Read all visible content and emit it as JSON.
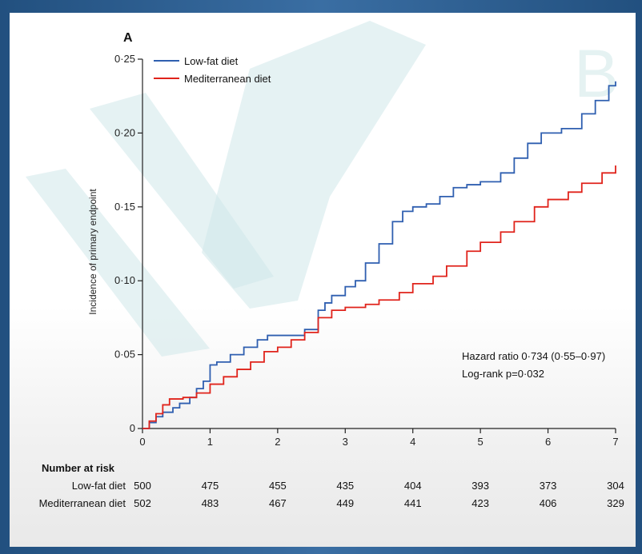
{
  "panel_letter": "A",
  "annotations": {
    "hazard_ratio": "Hazard ratio 0·734 (0·55–0·97)",
    "log_rank": "Log-rank p=0·032"
  },
  "colors": {
    "low_fat": "#2f5fb0",
    "mediterranean": "#e0231b"
  },
  "risk_table": {
    "title": "Number at risk",
    "rows": [
      {
        "label": "Low-fat diet",
        "values": [
          "500",
          "475",
          "455",
          "435",
          "404",
          "393",
          "373",
          "304"
        ]
      },
      {
        "label": "Mediterranean diet",
        "values": [
          "502",
          "483",
          "467",
          "449",
          "441",
          "423",
          "406",
          "329"
        ]
      }
    ]
  },
  "watermark_text": "B",
  "chart_data": {
    "type": "line",
    "title": "",
    "xlabel": "",
    "ylabel": "Incidence of primary endpoint",
    "xlim": [
      0,
      7
    ],
    "ylim": [
      0,
      0.25
    ],
    "x_ticks": [
      0,
      1,
      2,
      3,
      4,
      5,
      6,
      7
    ],
    "x_tick_labels": [
      "0",
      "1",
      "2",
      "3",
      "4",
      "5",
      "6",
      "7"
    ],
    "y_ticks": [
      0,
      0.05,
      0.1,
      0.15,
      0.2,
      0.25
    ],
    "y_tick_labels": [
      "0",
      "0·05",
      "0·10",
      "0·15",
      "0·20",
      "0·25"
    ],
    "legend_position": "top-left",
    "step": true,
    "series": [
      {
        "name": "Low-fat diet",
        "color": "#2f5fb0",
        "points": [
          [
            0,
            0
          ],
          [
            0.1,
            0.004
          ],
          [
            0.2,
            0.008
          ],
          [
            0.3,
            0.011
          ],
          [
            0.45,
            0.014
          ],
          [
            0.55,
            0.017
          ],
          [
            0.7,
            0.021
          ],
          [
            0.8,
            0.027
          ],
          [
            0.9,
            0.032
          ],
          [
            1.0,
            0.043
          ],
          [
            1.1,
            0.045
          ],
          [
            1.3,
            0.05
          ],
          [
            1.5,
            0.055
          ],
          [
            1.7,
            0.06
          ],
          [
            1.85,
            0.063
          ],
          [
            2.0,
            0.063
          ],
          [
            2.2,
            0.063
          ],
          [
            2.4,
            0.067
          ],
          [
            2.6,
            0.08
          ],
          [
            2.7,
            0.085
          ],
          [
            2.8,
            0.09
          ],
          [
            3.0,
            0.096
          ],
          [
            3.15,
            0.1
          ],
          [
            3.3,
            0.112
          ],
          [
            3.5,
            0.125
          ],
          [
            3.7,
            0.14
          ],
          [
            3.85,
            0.147
          ],
          [
            4.0,
            0.15
          ],
          [
            4.2,
            0.152
          ],
          [
            4.4,
            0.157
          ],
          [
            4.6,
            0.163
          ],
          [
            4.8,
            0.165
          ],
          [
            5.0,
            0.167
          ],
          [
            5.3,
            0.173
          ],
          [
            5.5,
            0.183
          ],
          [
            5.7,
            0.193
          ],
          [
            5.9,
            0.2
          ],
          [
            6.2,
            0.203
          ],
          [
            6.5,
            0.213
          ],
          [
            6.7,
            0.222
          ],
          [
            6.9,
            0.232
          ],
          [
            7.0,
            0.235
          ]
        ]
      },
      {
        "name": "Mediterranean diet",
        "color": "#e0231b",
        "points": [
          [
            0,
            0
          ],
          [
            0.1,
            0.005
          ],
          [
            0.2,
            0.01
          ],
          [
            0.3,
            0.016
          ],
          [
            0.4,
            0.02
          ],
          [
            0.6,
            0.021
          ],
          [
            0.8,
            0.024
          ],
          [
            1.0,
            0.03
          ],
          [
            1.2,
            0.035
          ],
          [
            1.4,
            0.04
          ],
          [
            1.6,
            0.045
          ],
          [
            1.8,
            0.052
          ],
          [
            2.0,
            0.055
          ],
          [
            2.2,
            0.06
          ],
          [
            2.4,
            0.065
          ],
          [
            2.6,
            0.075
          ],
          [
            2.8,
            0.08
          ],
          [
            3.0,
            0.082
          ],
          [
            3.3,
            0.084
          ],
          [
            3.5,
            0.087
          ],
          [
            3.8,
            0.092
          ],
          [
            4.0,
            0.098
          ],
          [
            4.3,
            0.103
          ],
          [
            4.5,
            0.11
          ],
          [
            4.8,
            0.12
          ],
          [
            5.0,
            0.126
          ],
          [
            5.3,
            0.133
          ],
          [
            5.5,
            0.14
          ],
          [
            5.8,
            0.15
          ],
          [
            6.0,
            0.155
          ],
          [
            6.3,
            0.16
          ],
          [
            6.5,
            0.166
          ],
          [
            6.8,
            0.173
          ],
          [
            7.0,
            0.178
          ]
        ]
      }
    ]
  }
}
